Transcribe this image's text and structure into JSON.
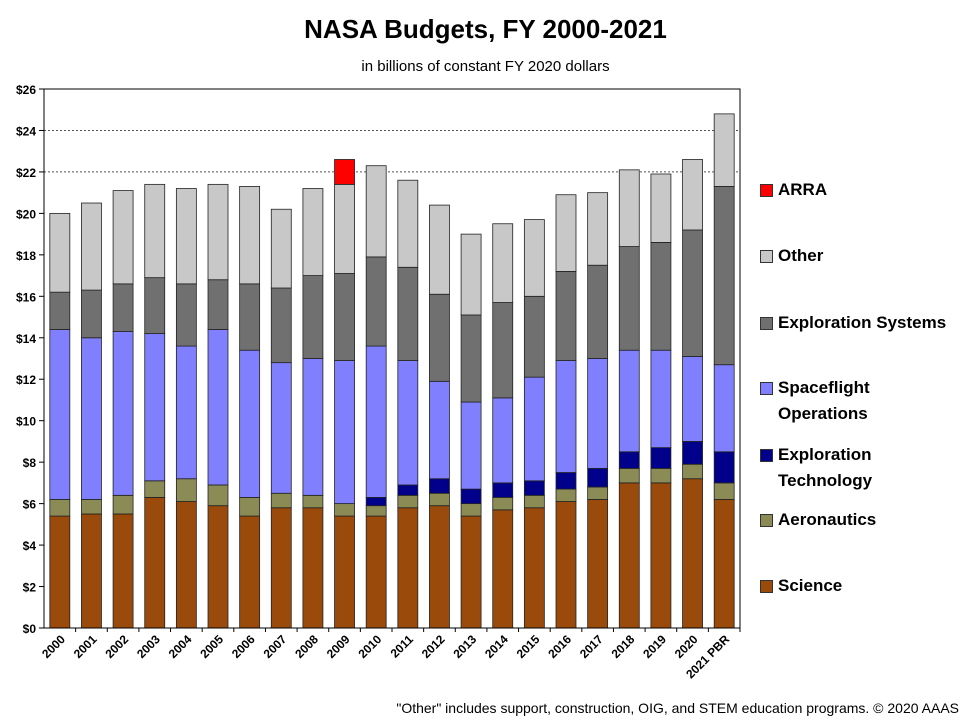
{
  "chart_data": {
    "type": "bar",
    "stacked": true,
    "title": "NASA Budgets, FY 2000-2021",
    "subtitle": "in billions of constant FY 2020 dollars",
    "note": "\"Other\" includes  support, construction, OIG, and STEM education programs. © 2020 AAAS",
    "xlabel": "",
    "ylabel": "",
    "ylim": [
      0,
      26
    ],
    "yticks": [
      0,
      2,
      4,
      6,
      8,
      10,
      12,
      14,
      16,
      18,
      20,
      22,
      24,
      26
    ],
    "ytick_labels": [
      "$0",
      "$2",
      "$4",
      "$6",
      "$8",
      "$10",
      "$12",
      "$14",
      "$16",
      "$18",
      "$20",
      "$22",
      "$24",
      "$26"
    ],
    "categories": [
      "2000",
      "2001",
      "2002",
      "2003",
      "2004",
      "2005",
      "2006",
      "2007",
      "2008",
      "2009",
      "2010",
      "2011",
      "2012",
      "2013",
      "2014",
      "2015",
      "2016",
      "2017",
      "2018",
      "2019",
      "2020",
      "2021 PBR"
    ],
    "series": [
      {
        "name": "Science",
        "color": "#9a4a0a",
        "values": [
          5.4,
          5.5,
          5.5,
          6.3,
          6.1,
          5.9,
          5.4,
          5.8,
          5.8,
          5.4,
          5.4,
          5.8,
          5.9,
          5.4,
          5.7,
          5.8,
          6.1,
          6.2,
          7.0,
          7.0,
          7.2,
          6.2
        ]
      },
      {
        "name": "Aeronautics",
        "color": "#8b8b55",
        "values": [
          0.8,
          0.7,
          0.9,
          0.8,
          1.1,
          1.0,
          0.9,
          0.7,
          0.6,
          0.6,
          0.5,
          0.6,
          0.6,
          0.6,
          0.6,
          0.6,
          0.6,
          0.6,
          0.7,
          0.7,
          0.7,
          0.8
        ]
      },
      {
        "name": "Exploration Technology",
        "color": "#00008b",
        "values": [
          0,
          0,
          0,
          0,
          0,
          0,
          0,
          0,
          0,
          0,
          0.4,
          0.5,
          0.7,
          0.7,
          0.7,
          0.7,
          0.8,
          0.9,
          0.8,
          1.0,
          1.1,
          1.5
        ]
      },
      {
        "name": "Spaceflight Operations",
        "color": "#8080ff",
        "values": [
          8.2,
          7.8,
          7.9,
          7.1,
          6.4,
          7.5,
          7.1,
          6.3,
          6.6,
          6.9,
          7.3,
          6.0,
          4.7,
          4.2,
          4.1,
          5.0,
          5.4,
          5.3,
          4.9,
          4.7,
          4.1,
          4.2
        ]
      },
      {
        "name": "Exploration Systems",
        "color": "#707070",
        "values": [
          1.8,
          2.3,
          2.3,
          2.7,
          3.0,
          2.4,
          3.2,
          3.6,
          4.0,
          4.2,
          4.3,
          4.5,
          4.2,
          4.2,
          4.6,
          3.9,
          4.3,
          4.5,
          5.0,
          5.2,
          6.1,
          8.6
        ]
      },
      {
        "name": "Other",
        "color": "#c8c8c8",
        "values": [
          3.8,
          4.2,
          4.5,
          4.5,
          4.6,
          4.6,
          4.7,
          3.8,
          4.2,
          4.3,
          4.4,
          4.2,
          4.3,
          3.9,
          3.8,
          3.7,
          3.7,
          3.5,
          3.7,
          3.3,
          3.4,
          3.5
        ]
      },
      {
        "name": "ARRA",
        "color": "#ff0000",
        "values": [
          0,
          0,
          0,
          0,
          0,
          0,
          0,
          0,
          0,
          1.2,
          0,
          0,
          0,
          0,
          0,
          0,
          0,
          0,
          0,
          0,
          0,
          0
        ]
      }
    ],
    "legend": [
      "ARRA",
      "Other",
      "Exploration Systems",
      "Spaceflight|Operations",
      "Exploration|Technology",
      "Aeronautics",
      "Science"
    ],
    "legend_position": "right",
    "grid": "dashed horizontal at $22, $24"
  }
}
